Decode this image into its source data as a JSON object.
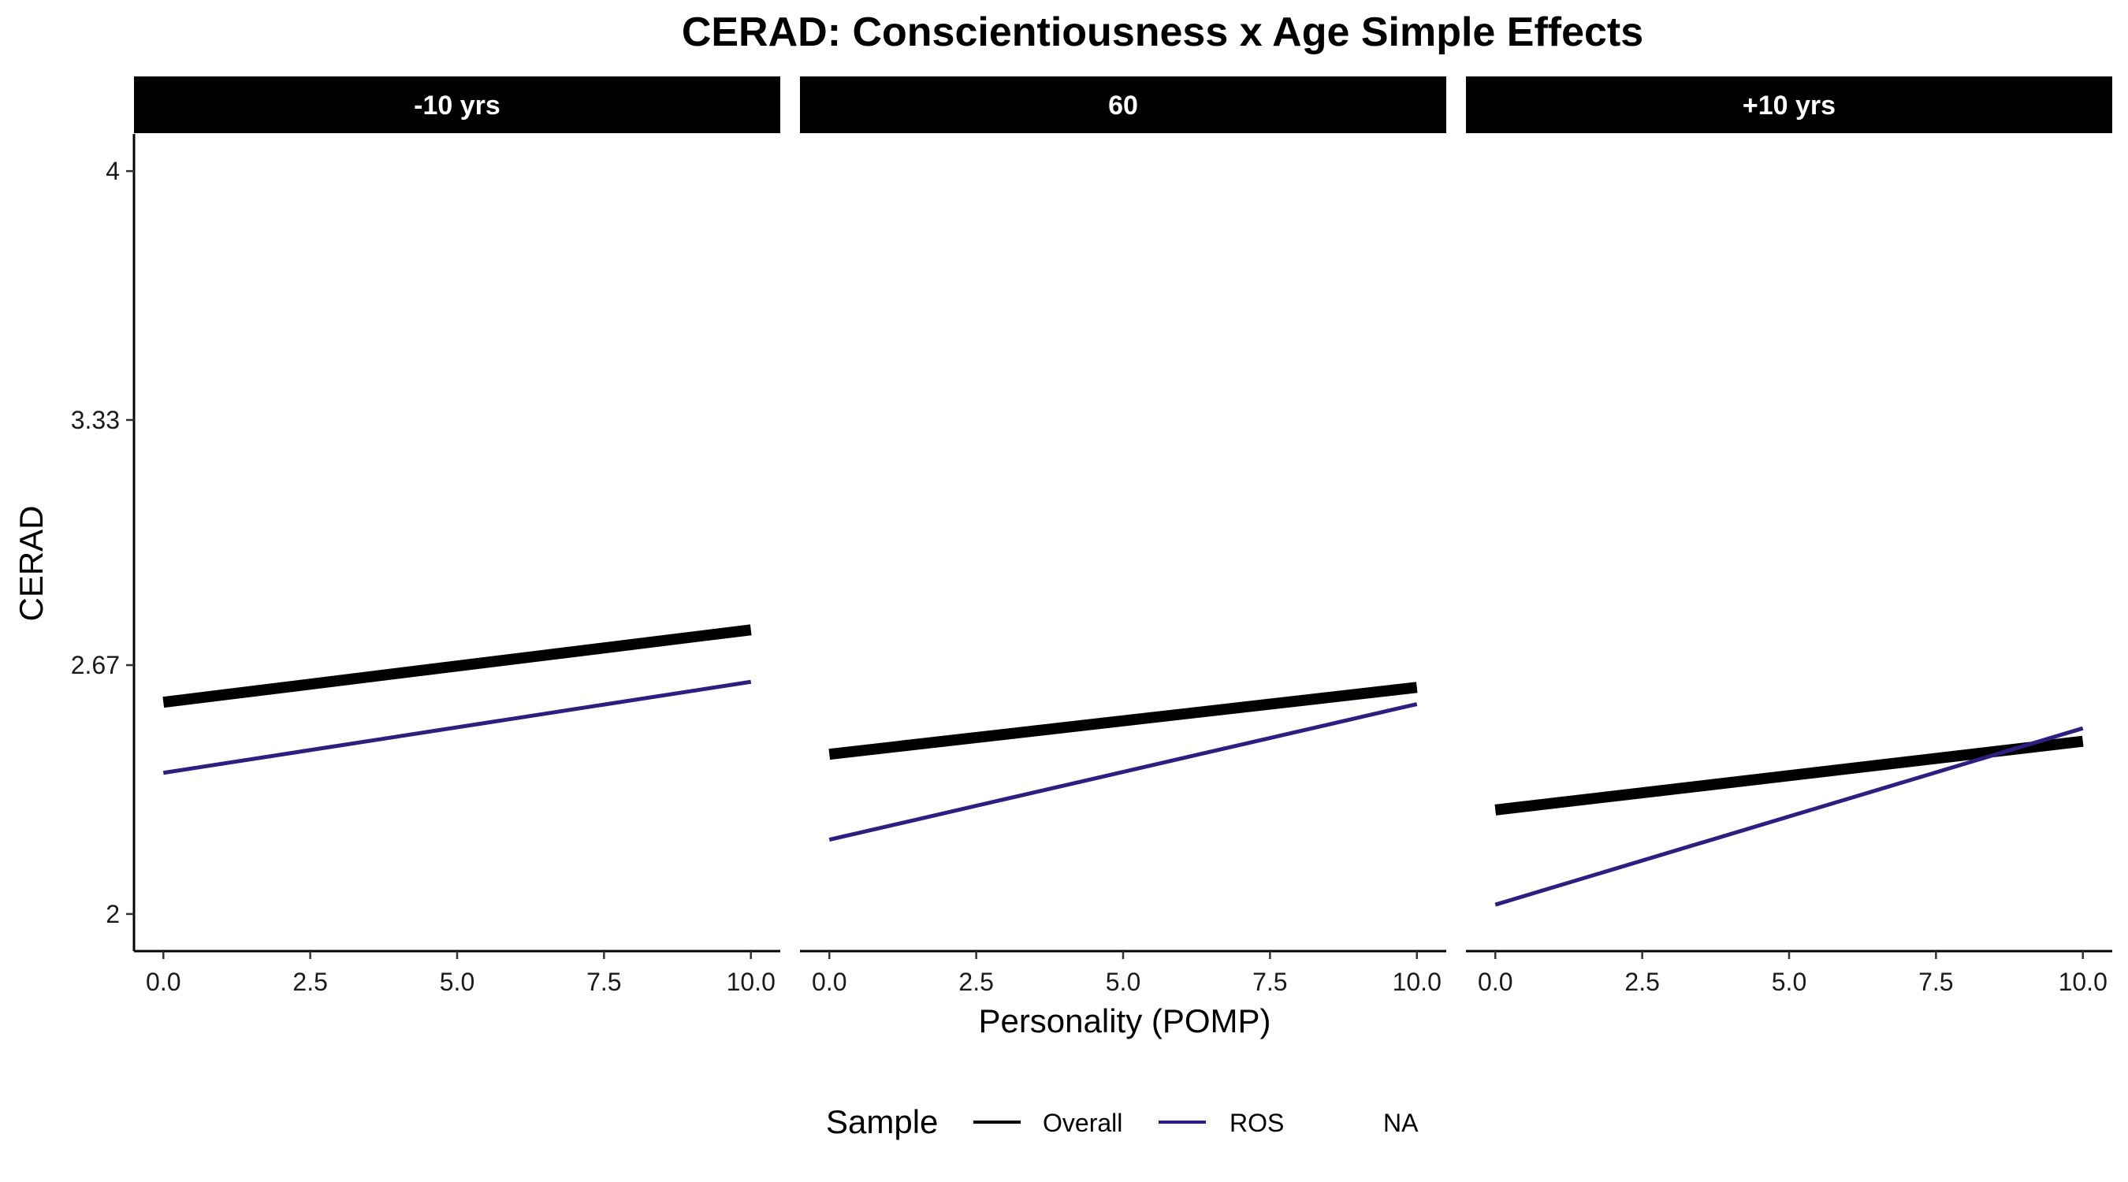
{
  "chart_data": {
    "type": "line",
    "title": "CERAD: Conscientiousness x Age Simple Effects",
    "xlabel": "Personality (POMP)",
    "ylabel": "CERAD",
    "xlim": [
      -0.5,
      10.5
    ],
    "ylim": [
      1.9,
      4.1
    ],
    "x_ticks": [
      "0.0",
      "2.5",
      "5.0",
      "7.5",
      "10.0"
    ],
    "x_tick_values": [
      0,
      2.5,
      5,
      7.5,
      10
    ],
    "y_ticks": [
      "2",
      "2.67",
      "3.33",
      "4"
    ],
    "y_tick_values": [
      2,
      2.67,
      3.33,
      4
    ],
    "grid": false,
    "legend": {
      "title": "Sample",
      "placement": "bottom",
      "entries": [
        {
          "label": "Overall",
          "color": "#000000"
        },
        {
          "label": "ROS",
          "color": "#2d1e80"
        },
        {
          "label": "NA",
          "color": null
        }
      ]
    },
    "panels": [
      {
        "label": "-10 yrs",
        "series": [
          {
            "name": "Overall",
            "color": "#000000",
            "x": [
              0,
              10
            ],
            "y": [
              2.57,
              2.765
            ]
          },
          {
            "name": "ROS",
            "color": "#2d1e80",
            "x": [
              0,
              10
            ],
            "y": [
              2.38,
              2.625
            ]
          }
        ]
      },
      {
        "label": "60",
        "series": [
          {
            "name": "Overall",
            "color": "#000000",
            "x": [
              0,
              10
            ],
            "y": [
              2.43,
              2.61
            ]
          },
          {
            "name": "ROS",
            "color": "#2d1e80",
            "x": [
              0,
              10
            ],
            "y": [
              2.2,
              2.565
            ]
          }
        ]
      },
      {
        "label": "+10 yrs",
        "series": [
          {
            "name": "Overall",
            "color": "#000000",
            "x": [
              0,
              10
            ],
            "y": [
              2.28,
              2.465
            ]
          },
          {
            "name": "ROS",
            "color": "#2d1e80",
            "x": [
              0,
              10
            ],
            "y": [
              2.025,
              2.5
            ]
          }
        ]
      }
    ]
  }
}
